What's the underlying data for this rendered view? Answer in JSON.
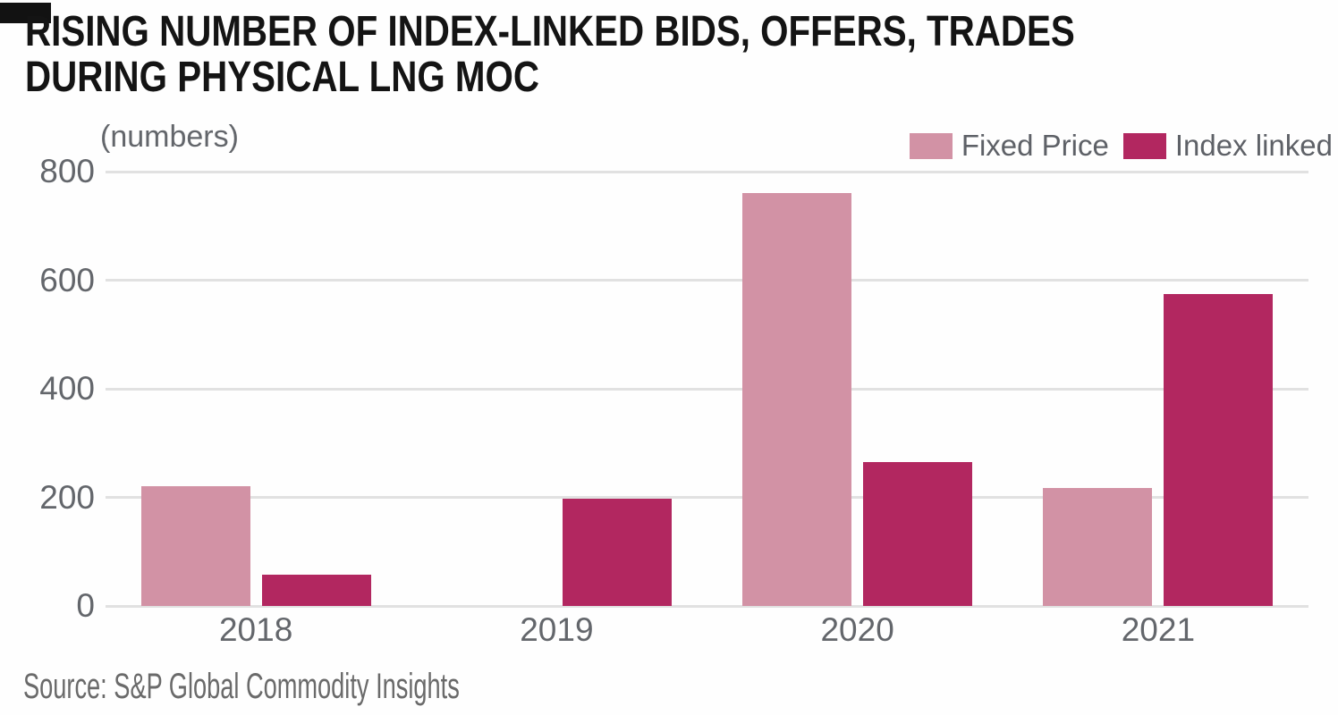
{
  "header": {
    "title_line1": "RISING NUMBER OF INDEX-LINKED BIDS, OFFERS, TRADES",
    "title_line2": "DURING PHYSICAL LNG MOC",
    "unit_label": "(numbers)"
  },
  "source_note": "Source: S&P Global Commodity Insights",
  "colors": {
    "fixed_price": "#d292a5",
    "index_linked": "#b22760",
    "gridline": "#e1e1e1",
    "title_text": "#141414",
    "axis_text": "#63666b",
    "background": "#fefefe"
  },
  "chart_data": {
    "type": "bar",
    "title": "RISING NUMBER OF INDEX-LINKED BIDS, OFFERS, TRADES DURING PHYSICAL LNG MOC",
    "ylabel": "(numbers)",
    "xlabel": "",
    "categories": [
      "2018",
      "2019",
      "2020",
      "2021"
    ],
    "series": [
      {
        "name": "Fixed Price",
        "color": "#d292a5",
        "values": [
          220,
          0,
          760,
          217
        ]
      },
      {
        "name": "Index linked",
        "color": "#b22760",
        "values": [
          57,
          197,
          265,
          574
        ]
      }
    ],
    "ylim": [
      0,
      800
    ],
    "yticks": [
      0,
      200,
      400,
      600,
      800
    ],
    "grid": true,
    "legend_position": "top-right"
  }
}
